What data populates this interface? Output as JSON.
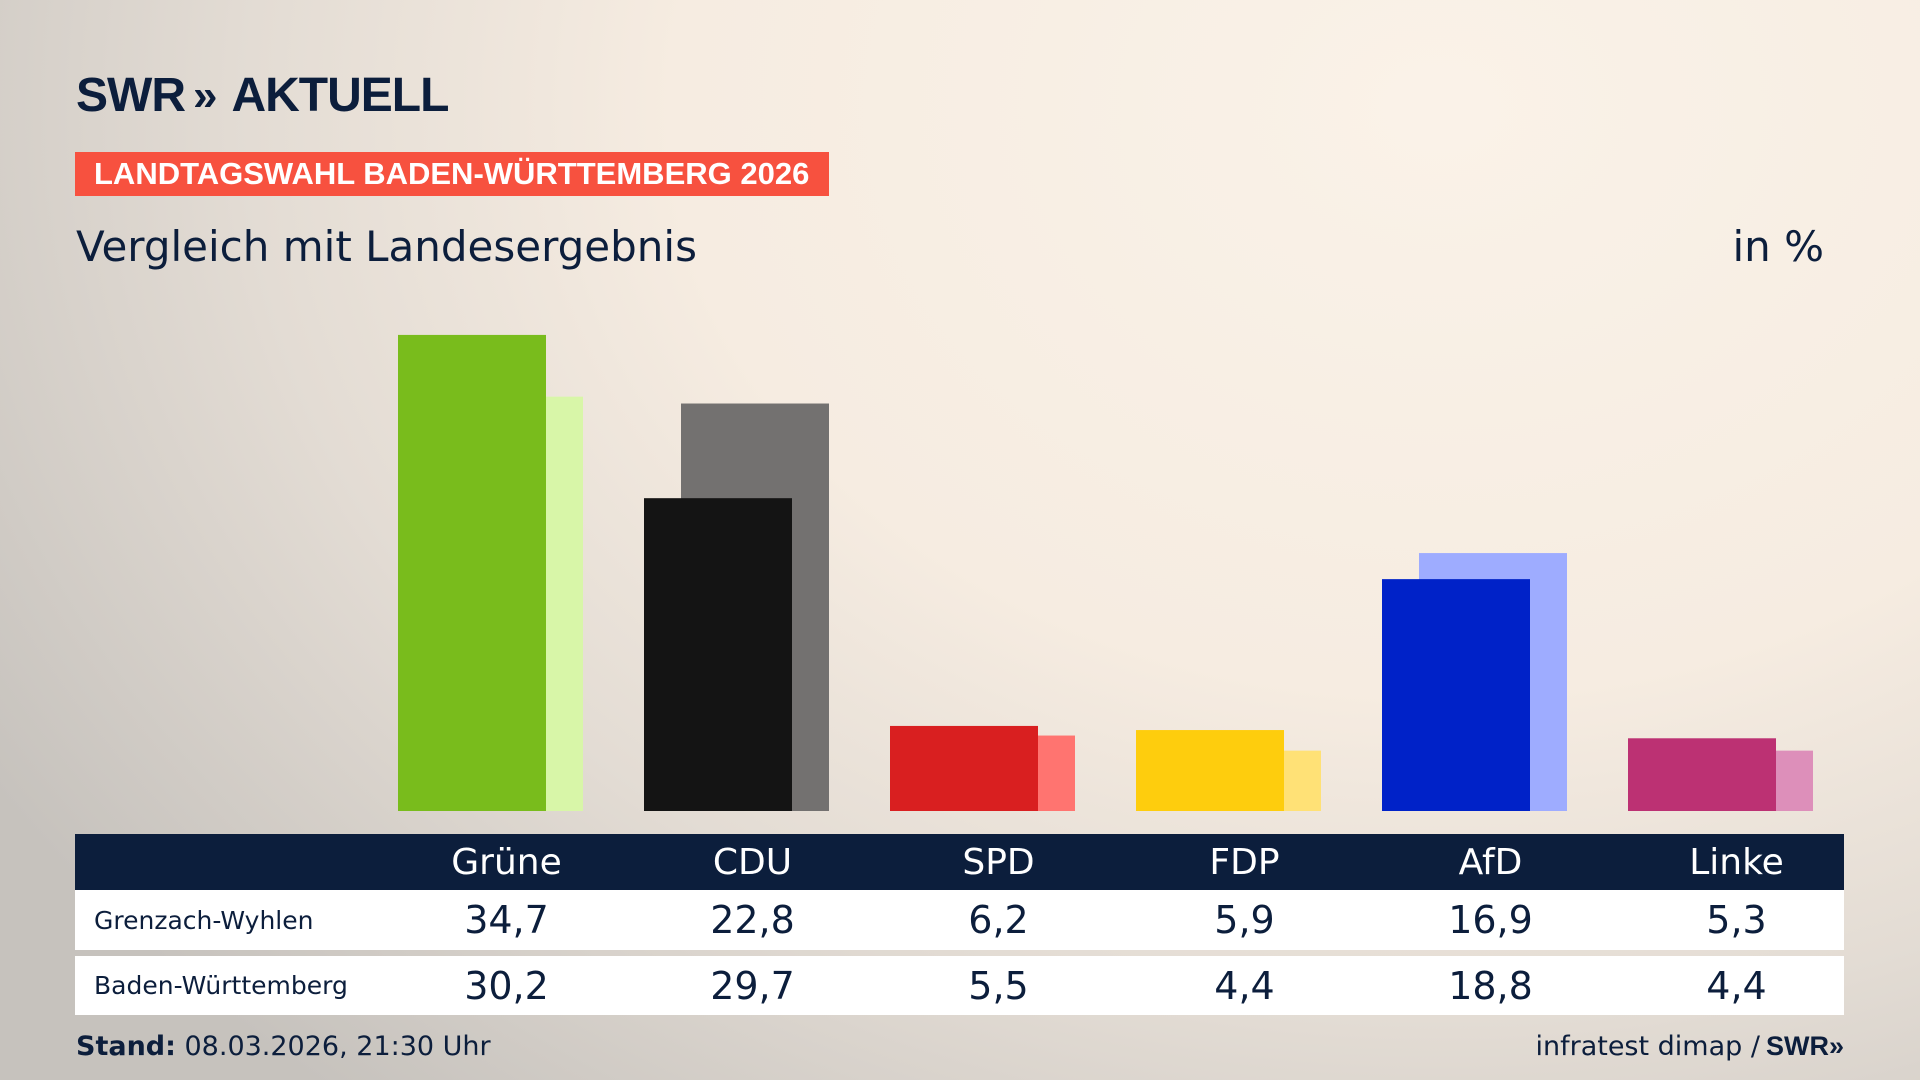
{
  "brand": {
    "logo_text": "SWR",
    "logo_arrows": "»",
    "logo_suffix": "AKTUELL"
  },
  "banner": "LANDTAGSWAHL BADEN-WÜRTTEMBERG 2026",
  "subtitle": "Vergleich mit Landesergebnis",
  "unit": "in %",
  "footer": {
    "stand_label": "Stand:",
    "stand_value": " 08.03.2026, 21:30 Uhr",
    "source": "infratest dimap /",
    "source_logo": "SWR»"
  },
  "chart_data": {
    "type": "bar",
    "categories": [
      "Grüne",
      "CDU",
      "SPD",
      "FDP",
      "AfD",
      "Linke"
    ],
    "series": [
      {
        "name": "Grenzach-Wyhlen",
        "values": [
          34.7,
          22.8,
          6.2,
          5.9,
          16.9,
          5.3
        ]
      },
      {
        "name": "Baden-Württemberg",
        "values": [
          30.2,
          29.7,
          5.5,
          4.4,
          18.8,
          4.4
        ]
      }
    ],
    "value_labels": {
      "Grenzach-Wyhlen": [
        "34,7",
        "22,8",
        "6,2",
        "5,9",
        "16,9",
        "5,3"
      ],
      "Baden-Württemberg": [
        "30,2",
        "29,7",
        "5,5",
        "4,4",
        "18,8",
        "4,4"
      ]
    },
    "colors": {
      "Grenzach-Wyhlen": [
        "#79bc1c",
        "#141414",
        "#d91f20",
        "#fecd0d",
        "#0022c8",
        "#bc3173"
      ],
      "Baden-Württemberg": [
        "#d8f6a8",
        "#737170",
        "#ff7470",
        "#ffe176",
        "#9eacff",
        "#dd8fba"
      ]
    },
    "ylim": [
      0,
      35
    ],
    "grid": false,
    "legend": "table-below"
  }
}
